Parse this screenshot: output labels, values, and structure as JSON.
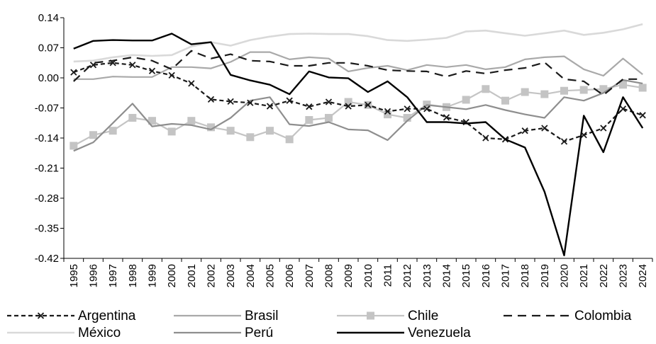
{
  "chart_data": {
    "type": "line",
    "title": "",
    "xlabel": "",
    "ylabel": "",
    "x": [
      "1995",
      "1996",
      "1997",
      "1998",
      "1999",
      "2000",
      "2001",
      "2002",
      "2003",
      "2004",
      "2005",
      "2006",
      "2007",
      "2008",
      "2009",
      "2010",
      "2011",
      "2012",
      "2013",
      "2014",
      "2015",
      "2016",
      "2017",
      "2018",
      "2019",
      "2020",
      "2021",
      "2022",
      "2023",
      "2024"
    ],
    "ylim": [
      -0.42,
      0.14
    ],
    "yticks": [
      0.14,
      0.07,
      0.0,
      -0.07,
      -0.14,
      -0.21,
      -0.28,
      -0.35,
      -0.42
    ],
    "ytick_labels": [
      "0.14",
      "0.07",
      "0.00",
      "-0.07",
      "-0.14",
      "-0.21",
      "-0.28",
      "-0.35",
      "-0.42"
    ],
    "grid": false,
    "legend": "bottom",
    "series": [
      {
        "name": "Argentina",
        "color": "#1a1a1a",
        "dash": "6,4",
        "width": 2.2,
        "marker": "x",
        "values": [
          0.013,
          0.03,
          0.035,
          0.03,
          0.016,
          0.006,
          -0.013,
          -0.05,
          -0.055,
          -0.058,
          -0.066,
          -0.053,
          -0.067,
          -0.056,
          -0.066,
          -0.063,
          -0.078,
          -0.072,
          -0.072,
          -0.092,
          -0.103,
          -0.14,
          -0.143,
          -0.123,
          -0.117,
          -0.148,
          -0.133,
          -0.117,
          -0.072,
          -0.087
        ]
      },
      {
        "name": "Brasil",
        "color": "#a9a9a9",
        "dash": "",
        "width": 2.2,
        "marker": "none",
        "values": [
          -0.003,
          -0.003,
          0.003,
          0.002,
          0.002,
          0.025,
          0.025,
          0.022,
          0.037,
          0.06,
          0.06,
          0.043,
          0.048,
          0.045,
          0.015,
          0.023,
          0.028,
          0.018,
          0.03,
          0.025,
          0.03,
          0.02,
          0.025,
          0.043,
          0.048,
          0.05,
          0.02,
          0.005,
          0.045,
          0.008
        ]
      },
      {
        "name": "Chile",
        "color": "#c4c4c4",
        "dash": "",
        "width": 2.2,
        "marker": "square",
        "values": [
          -0.158,
          -0.133,
          -0.123,
          -0.093,
          -0.1,
          -0.125,
          -0.1,
          -0.115,
          -0.123,
          -0.138,
          -0.123,
          -0.143,
          -0.098,
          -0.093,
          -0.056,
          -0.063,
          -0.085,
          -0.093,
          -0.062,
          -0.068,
          -0.051,
          -0.026,
          -0.053,
          -0.033,
          -0.038,
          -0.03,
          -0.028,
          -0.026,
          -0.016,
          -0.023
        ]
      },
      {
        "name": "Colombia",
        "color": "#1a1a1a",
        "dash": "12,8",
        "width": 2.2,
        "marker": "none",
        "values": [
          -0.008,
          0.035,
          0.04,
          0.048,
          0.04,
          0.02,
          0.063,
          0.045,
          0.055,
          0.04,
          0.038,
          0.028,
          0.028,
          0.035,
          0.035,
          0.028,
          0.018,
          0.016,
          0.015,
          0.003,
          0.016,
          0.01,
          0.018,
          0.023,
          0.036,
          -0.003,
          -0.008,
          -0.04,
          -0.003,
          -0.003
        ]
      },
      {
        "name": "México",
        "color": "#d9d9d9",
        "dash": "",
        "width": 2.6,
        "marker": "none",
        "values": [
          0.038,
          0.04,
          0.048,
          0.053,
          0.051,
          0.053,
          0.073,
          0.083,
          0.075,
          0.088,
          0.096,
          0.102,
          0.103,
          0.102,
          0.102,
          0.097,
          0.088,
          0.086,
          0.089,
          0.093,
          0.108,
          0.11,
          0.104,
          0.098,
          0.104,
          0.11,
          0.1,
          0.105,
          0.113,
          0.125
        ]
      },
      {
        "name": "Perú",
        "color": "#8e8e8e",
        "dash": "",
        "width": 2.2,
        "marker": "none",
        "values": [
          -0.17,
          -0.15,
          -0.105,
          -0.06,
          -0.113,
          -0.107,
          -0.11,
          -0.12,
          -0.093,
          -0.053,
          -0.045,
          -0.108,
          -0.112,
          -0.103,
          -0.12,
          -0.122,
          -0.145,
          -0.1,
          -0.063,
          -0.068,
          -0.073,
          -0.063,
          -0.075,
          -0.085,
          -0.093,
          -0.045,
          -0.053,
          -0.035,
          -0.005,
          -0.013
        ]
      },
      {
        "name": "Venezuela",
        "color": "#000000",
        "dash": "",
        "width": 2.4,
        "marker": "none",
        "values": [
          0.068,
          0.086,
          0.088,
          0.087,
          0.087,
          0.103,
          0.078,
          0.083,
          0.007,
          -0.006,
          -0.016,
          -0.038,
          0.015,
          0.001,
          -0.001,
          -0.033,
          -0.008,
          -0.045,
          -0.103,
          -0.103,
          -0.106,
          -0.103,
          -0.143,
          -0.162,
          -0.265,
          -0.413,
          -0.088,
          -0.173,
          -0.045,
          -0.117
        ]
      }
    ]
  }
}
